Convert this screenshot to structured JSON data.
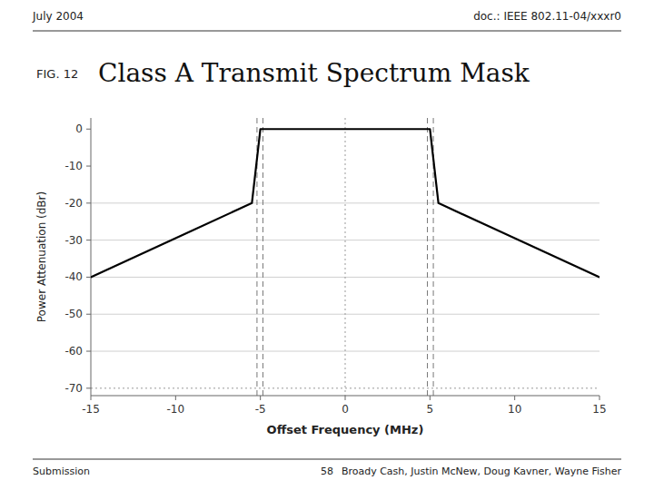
{
  "chart_data": {
    "type": "line",
    "title": "Class A Transmit Spectrum Mask",
    "annotations": {
      "fig_label": "FIG. 12",
      "header_left": "July 2004",
      "header_right": "doc.: IEEE 802.11-04/xxxr0",
      "footer_left": "Submission",
      "footer_center": "58",
      "footer_right": "Broady Cash, Justin McNew, Doug Kavner, Wayne Fisher"
    },
    "x_label": "Offset Frequency (MHz)",
    "y_label": "Power Attenuation (dBr)",
    "x": [
      -15,
      -5.5,
      -5.0,
      5.0,
      5.5,
      15
    ],
    "values": [
      -40,
      -20,
      0,
      0,
      -20,
      -40
    ],
    "color": "#000000",
    "xlim": [
      -15,
      15
    ],
    "ylim": [
      -72,
      3
    ],
    "xticks": [
      -15,
      -10,
      -5,
      0,
      5,
      10,
      15
    ],
    "yticks": [
      0,
      -10,
      -20,
      -30,
      -40,
      -50,
      -60,
      -70
    ],
    "reference_lines": [
      {
        "axis": "y",
        "value": -20,
        "line_style": "solid"
      },
      {
        "axis": "y",
        "value": -30,
        "line_style": "solid"
      },
      {
        "axis": "y",
        "value": -40,
        "line_style": "solid"
      },
      {
        "axis": "y",
        "value": -50,
        "line_style": "solid"
      },
      {
        "axis": "y",
        "value": -60,
        "line_style": "solid"
      },
      {
        "axis": "y",
        "value": -70,
        "line_style": "dotted"
      },
      {
        "axis": "x",
        "value": 0,
        "line_style": "dotted"
      },
      {
        "axis": "x",
        "value": -5.2,
        "line_style": "dashed"
      },
      {
        "axis": "x",
        "value": -4.85,
        "line_style": "dashed"
      },
      {
        "axis": "x",
        "value": 4.85,
        "line_style": "dashed"
      },
      {
        "axis": "x",
        "value": 5.2,
        "line_style": "dashed"
      }
    ]
  }
}
